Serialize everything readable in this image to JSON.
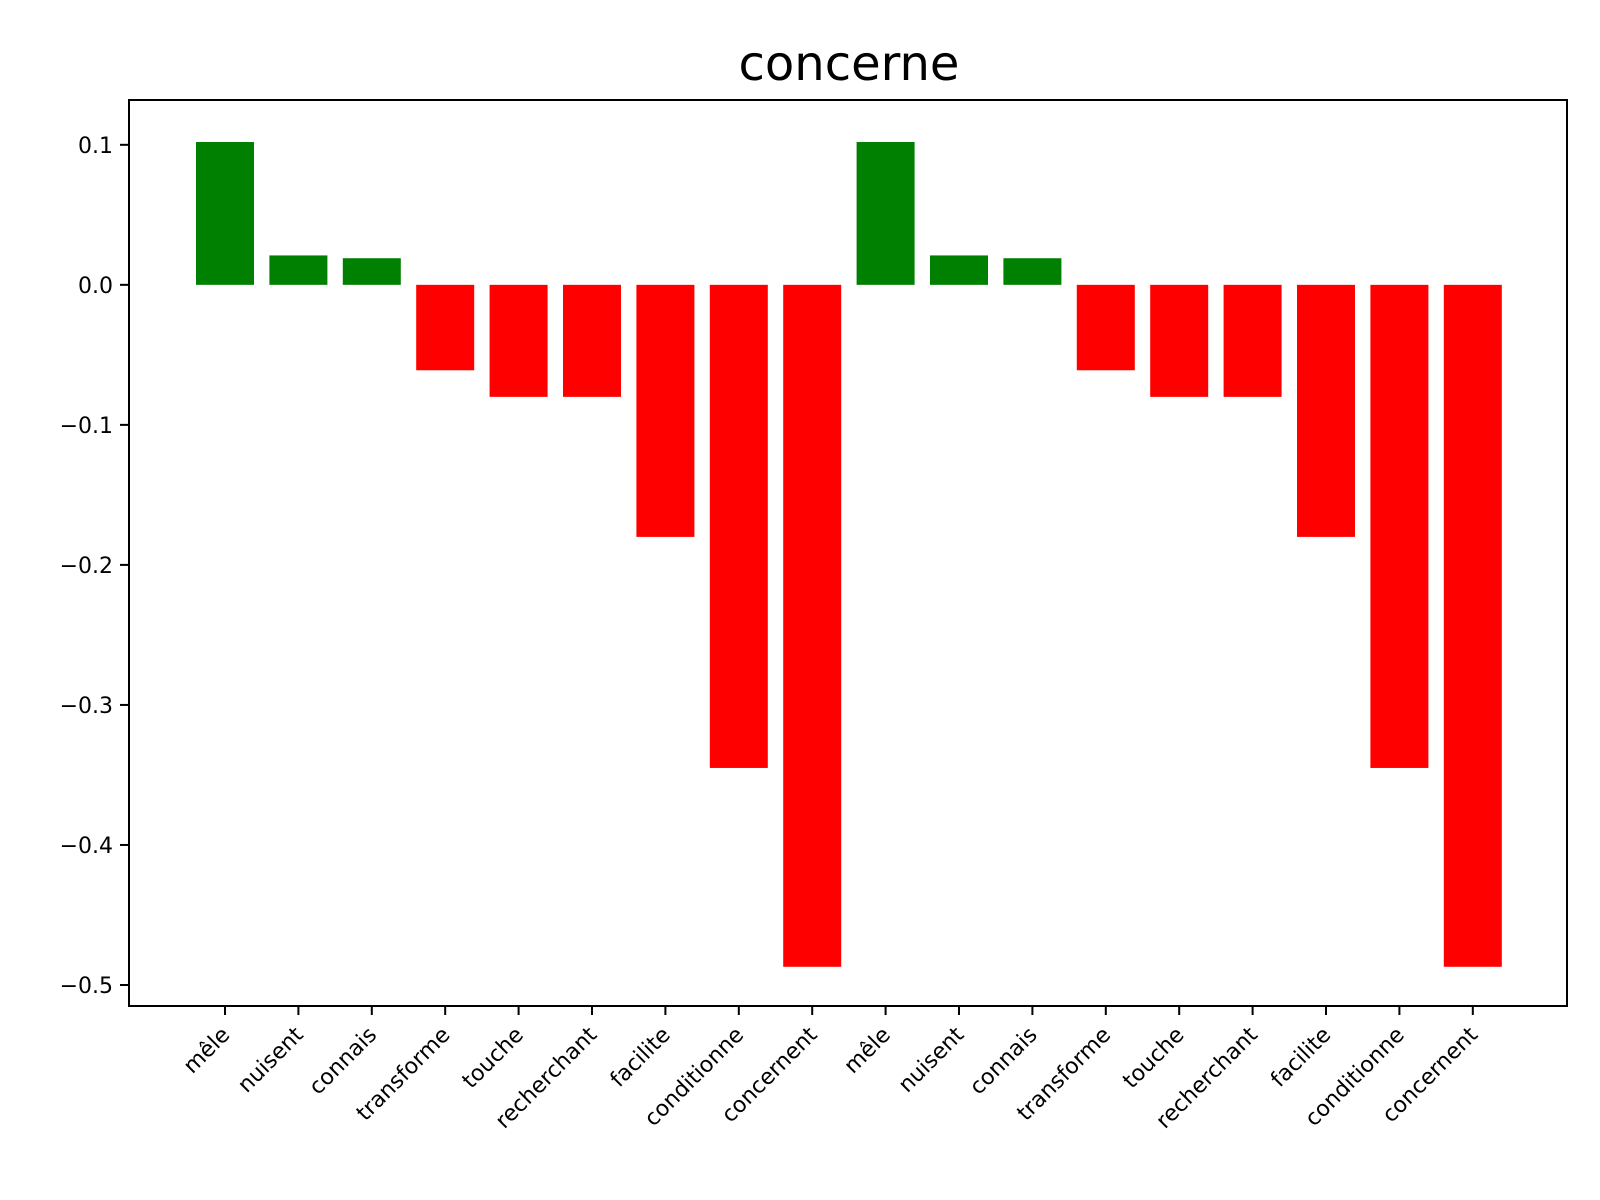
{
  "chart_data": {
    "type": "bar",
    "title": "concerne",
    "xlabel": "",
    "ylabel": "",
    "categories": [
      "mêle",
      "nuisent",
      "connais",
      "transforme",
      "touche",
      "recherchant",
      "facilite",
      "conditionne",
      "concernent",
      "mêle",
      "nuisent",
      "connais",
      "transforme",
      "touche",
      "recherchant",
      "facilite",
      "conditionne",
      "concernent"
    ],
    "values": [
      0.102,
      0.021,
      0.019,
      -0.061,
      -0.08,
      -0.08,
      -0.18,
      -0.345,
      -0.487,
      0.102,
      0.021,
      0.019,
      -0.061,
      -0.08,
      -0.08,
      -0.18,
      -0.345,
      -0.487
    ],
    "ylim": [
      -0.515,
      0.132
    ],
    "yticks": [
      0.1,
      0.0,
      -0.1,
      -0.2,
      -0.3,
      -0.4,
      -0.5
    ],
    "ytick_labels": [
      "0.1",
      "0.0",
      "−0.1",
      "−0.2",
      "−0.3",
      "−0.4",
      "−0.5"
    ],
    "grid": false,
    "colors": {
      "positive": "#008000",
      "negative": "#ff0000"
    }
  }
}
